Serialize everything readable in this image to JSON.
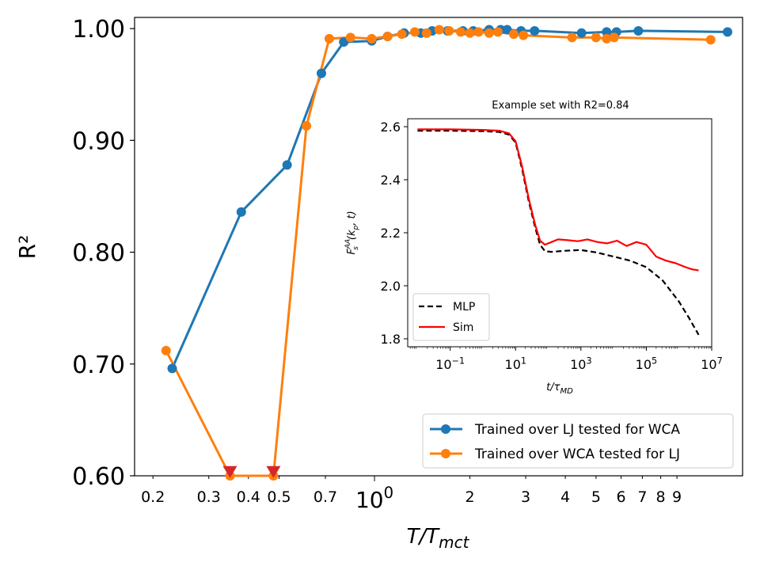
{
  "chart_data": [
    {
      "type": "line",
      "xlabel": "T/T_mct",
      "ylabel": "R²",
      "x_scale": "log",
      "xlim": [
        0.175,
        14.5
      ],
      "ylim": [
        0.6,
        1.01
      ],
      "grid": false,
      "legend_position": "lower-right",
      "y_ticks": [
        "1.00",
        "0.90",
        "0.80",
        "0.70",
        "0.60"
      ],
      "y_tick_values": [
        1.0,
        0.9,
        0.8,
        0.7,
        0.6
      ],
      "x_ticks": [
        {
          "value": 0.2,
          "label": "0.2"
        },
        {
          "value": 0.3,
          "label": "0.3"
        },
        {
          "value": 0.4,
          "label": "0.4"
        },
        {
          "value": 0.5,
          "label": "0.5"
        },
        {
          "value": 0.7,
          "label": "0.7"
        },
        {
          "value": 1.0,
          "label": "10^0"
        },
        {
          "value": 2,
          "label": "2"
        },
        {
          "value": 3,
          "label": "3"
        },
        {
          "value": 4,
          "label": "4"
        },
        {
          "value": 5,
          "label": "5"
        },
        {
          "value": 6,
          "label": "6"
        },
        {
          "value": 7,
          "label": "7"
        },
        {
          "value": 8,
          "label": "8"
        },
        {
          "value": 9,
          "label": "9"
        }
      ],
      "series": [
        {
          "name": "Trained over LJ tested for WCA",
          "color": "#1f77b4",
          "x": [
            0.23,
            0.38,
            0.53,
            0.68,
            0.8,
            0.98,
            1.1,
            1.24,
            1.4,
            1.52,
            1.7,
            1.9,
            2.05,
            2.3,
            2.5,
            2.62,
            2.9,
            3.2,
            4.5,
            5.4,
            5.8,
            6.8,
            13.0
          ],
          "y": [
            0.696,
            0.836,
            0.878,
            0.96,
            0.988,
            0.989,
            0.993,
            0.996,
            0.996,
            0.998,
            0.998,
            0.998,
            0.998,
            0.999,
            0.999,
            0.999,
            0.998,
            0.998,
            0.996,
            0.997,
            0.997,
            0.998,
            0.997
          ]
        },
        {
          "name": "Trained over WCA tested for LJ",
          "color": "#ff7f0e",
          "x": [
            0.22,
            0.35,
            0.48,
            0.61,
            0.72,
            0.84,
            0.98,
            1.1,
            1.22,
            1.34,
            1.46,
            1.6,
            1.72,
            1.87,
            2.0,
            2.13,
            2.3,
            2.45,
            2.75,
            2.95,
            4.2,
            5.0,
            5.4,
            5.7,
            11.5
          ],
          "y": [
            0.712,
            0.6,
            0.6,
            0.913,
            0.991,
            0.992,
            0.991,
            0.993,
            0.995,
            0.997,
            0.996,
            0.999,
            0.998,
            0.997,
            0.996,
            0.997,
            0.996,
            0.997,
            0.995,
            0.994,
            0.992,
            0.992,
            0.991,
            0.992,
            0.99
          ]
        }
      ],
      "markers": [
        {
          "x": 0.35,
          "y": 0.603,
          "shape": "triangle-down",
          "color": "#d62728"
        },
        {
          "x": 0.48,
          "y": 0.603,
          "shape": "triangle-down",
          "color": "#d62728"
        }
      ]
    },
    {
      "type": "line",
      "title": "Example set with R2=0.84",
      "xlabel": "t/τ_MD",
      "ylabel": "F_s^AA(k_p, t)",
      "x_scale": "log",
      "xlim_log10": [
        -2.3,
        7.0
      ],
      "ylim": [
        1.77,
        2.63
      ],
      "legend_position": "lower-left",
      "y_ticks": [
        "2.6",
        "2.4",
        "2.2",
        "2.0",
        "1.8"
      ],
      "y_tick_values": [
        2.6,
        2.4,
        2.2,
        2.0,
        1.8
      ],
      "x_ticks": [
        {
          "log10": -1,
          "label": "10^-1"
        },
        {
          "log10": 1,
          "label": "10^1"
        },
        {
          "log10": 3,
          "label": "10^3"
        },
        {
          "log10": 5,
          "label": "10^5"
        },
        {
          "log10": 7,
          "label": "10^7"
        }
      ],
      "series": [
        {
          "name": "MLP",
          "color": "#000000",
          "dash": "dashed",
          "log10_x": [
            -2.0,
            -1.0,
            0.0,
            0.5,
            0.8,
            1.0,
            1.2,
            1.4,
            1.6,
            1.75,
            1.9,
            2.1,
            2.5,
            3.0,
            3.5,
            4.0,
            4.5,
            5.0,
            5.5,
            6.0,
            6.3,
            6.6
          ],
          "y": [
            2.585,
            2.585,
            2.583,
            2.58,
            2.57,
            2.54,
            2.44,
            2.32,
            2.22,
            2.155,
            2.13,
            2.128,
            2.132,
            2.135,
            2.125,
            2.11,
            2.095,
            2.07,
            2.02,
            1.94,
            1.88,
            1.815
          ]
        },
        {
          "name": "Sim",
          "color": "#ff0000",
          "dash": "solid",
          "log10_x": [
            -2.0,
            -1.0,
            0.0,
            0.5,
            0.8,
            1.0,
            1.2,
            1.4,
            1.6,
            1.75,
            1.9,
            2.1,
            2.3,
            2.6,
            2.9,
            3.2,
            3.5,
            3.8,
            4.1,
            4.4,
            4.7,
            5.0,
            5.3,
            5.6,
            5.9,
            6.2,
            6.4,
            6.6
          ],
          "y": [
            2.59,
            2.59,
            2.588,
            2.585,
            2.575,
            2.545,
            2.45,
            2.33,
            2.23,
            2.17,
            2.155,
            2.165,
            2.175,
            2.172,
            2.168,
            2.175,
            2.165,
            2.16,
            2.17,
            2.15,
            2.165,
            2.155,
            2.11,
            2.095,
            2.085,
            2.07,
            2.062,
            2.058
          ]
        }
      ]
    }
  ]
}
